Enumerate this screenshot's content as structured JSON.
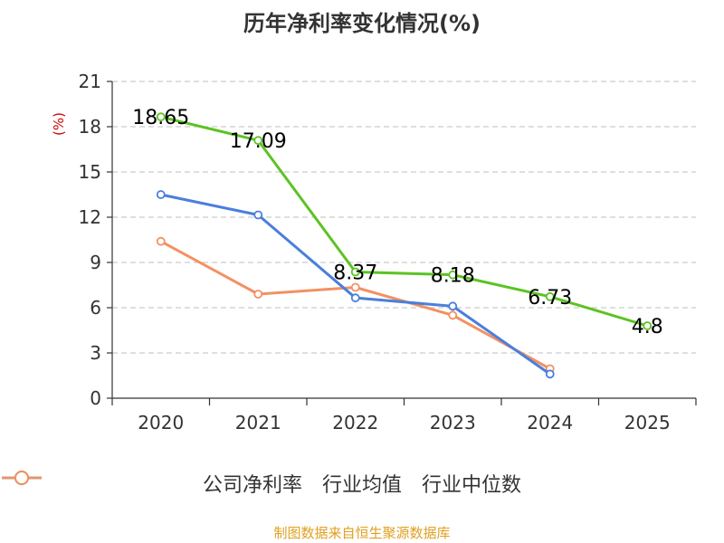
{
  "colors": {
    "accent": "#e0a020",
    "grid": "#cccccc",
    "axis": "#333333"
  },
  "source_text": "制图数据来自恒生聚源数据库",
  "chart_data": {
    "type": "line",
    "title": "历年净利率变化情况(%)",
    "xlabel": "",
    "ylabel": "(%)",
    "categories": [
      "2020",
      "2021",
      "2022",
      "2023",
      "2024",
      "2025"
    ],
    "ylim": [
      0,
      21
    ],
    "yticks": [
      0,
      3,
      6,
      9,
      12,
      15,
      18,
      21
    ],
    "grid": true,
    "legend_position": "bottom",
    "series": [
      {
        "name": "公司净利率",
        "color": "#5cc323",
        "values": [
          18.65,
          17.09,
          8.37,
          8.18,
          6.73,
          4.8
        ],
        "labels": [
          "18.65",
          "17.09",
          "8.37",
          "8.18",
          "6.73",
          "4.8"
        ]
      },
      {
        "name": "行业均值",
        "color": "#4a7fdc",
        "values": [
          13.5,
          12.15,
          6.65,
          6.1,
          1.6,
          null
        ]
      },
      {
        "name": "行业中位数",
        "color": "#f39162",
        "values": [
          10.4,
          6.9,
          7.35,
          5.5,
          1.95,
          null
        ]
      }
    ]
  }
}
